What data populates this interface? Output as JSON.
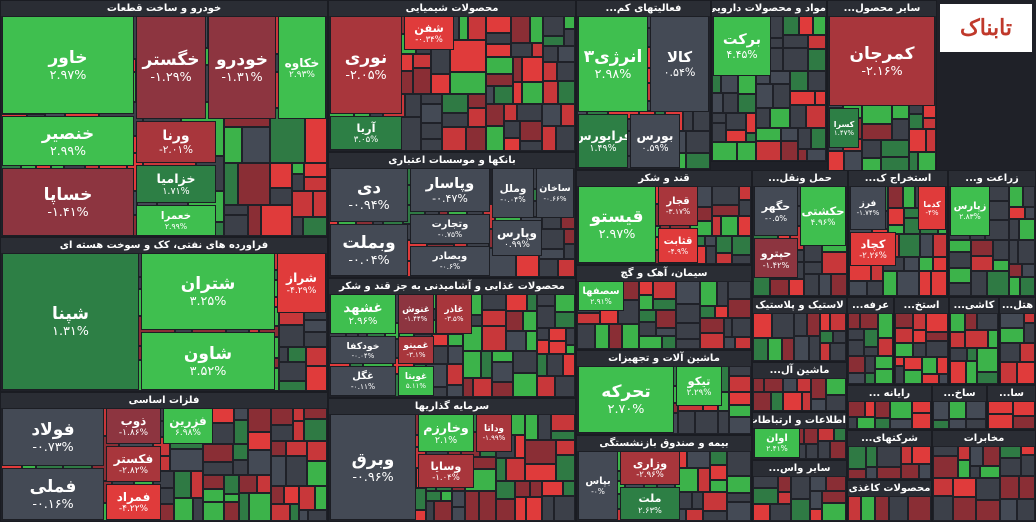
{
  "watermark": "تابناک",
  "sectors": [
    {
      "title": "خودرو و ساخت قطعات",
      "tiles": [
        {
          "name": "خاور",
          "change": "۲.۹۷%",
          "color": "#3fbf4f"
        },
        {
          "name": "خنصیر",
          "change": "۲.۹۹%",
          "color": "#3fbf4f"
        },
        {
          "name": "خساپا",
          "change": "-۱.۴۱%",
          "color": "#8d3540"
        },
        {
          "name": "خگستر",
          "change": "-۱.۲۹%",
          "color": "#8d3540"
        },
        {
          "name": "خودرو",
          "change": "-۱.۳۱%",
          "color": "#8d3540"
        },
        {
          "name": "خکاوه",
          "change": "۲.۹۳%",
          "color": "#3fbf4f"
        },
        {
          "name": "ورنا",
          "change": "-۲.۰۱%",
          "color": "#a8363c"
        },
        {
          "name": "خزامیا",
          "change": "۱.۷۱%",
          "color": "#2d7f45"
        },
        {
          "name": "خعمرا",
          "change": "۲.۹۹%",
          "color": "#3fbf4f"
        }
      ]
    },
    {
      "title": "فراورده های نفتی، کک و سوخت هسته ای",
      "tiles": [
        {
          "name": "شپنا",
          "change": "۱.۳۱%",
          "color": "#2d7f45"
        },
        {
          "name": "شتران",
          "change": "۳.۲۵%",
          "color": "#3fbf4f"
        },
        {
          "name": "شاون",
          "change": "۳.۵۲%",
          "color": "#3fbf4f"
        },
        {
          "name": "شراز",
          "change": "-۴.۲۹%",
          "color": "#e03b3b"
        }
      ]
    },
    {
      "title": "فلزات اساسی",
      "tiles": [
        {
          "name": "فولاد",
          "change": "-۰.۷۳%",
          "color": "#444a55"
        },
        {
          "name": "فملی",
          "change": "-۰.۱۶%",
          "color": "#444a55"
        },
        {
          "name": "ذوب",
          "change": "-۱.۸۶%",
          "color": "#8d3540"
        },
        {
          "name": "فزرین",
          "change": "۶.۹۸%",
          "color": "#3fbf4f"
        },
        {
          "name": "فکستر",
          "change": "-۲.۸۲%",
          "color": "#a8363c"
        },
        {
          "name": "فمراد",
          "change": "-۴.۲۲%",
          "color": "#e03b3b"
        }
      ]
    },
    {
      "title": "محصولات شیمیایی",
      "tiles": [
        {
          "name": "نوری",
          "change": "-۲.۰۵%",
          "color": "#a8363c"
        },
        {
          "name": "آریا",
          "change": "۳.۰۵%",
          "color": "#2d7f45"
        },
        {
          "name": "شفن",
          "change": "-۰.۳۴%",
          "color": "#e03b3b"
        }
      ]
    },
    {
      "title": "بانکها و موسسات اعتباری",
      "tiles": [
        {
          "name": "دی",
          "change": "-۰.۹۴%",
          "color": "#444a55"
        },
        {
          "name": "وبملت",
          "change": "-۰.۰۴%",
          "color": "#444a55"
        },
        {
          "name": "وپاسار",
          "change": "-۰.۴۷%",
          "color": "#444a55"
        },
        {
          "name": "وتجارت",
          "change": "-۰.۷۵%",
          "color": "#444a55"
        },
        {
          "name": "وبصادر",
          "change": "-۰.۶%",
          "color": "#444a55"
        },
        {
          "name": "وملل",
          "change": "-۰.۰۴%",
          "color": "#444a55"
        },
        {
          "name": "ساخان",
          "change": "-۰.۶۶%",
          "color": "#444a55"
        },
        {
          "name": "وپارس",
          "change": "۰.۹۹%",
          "color": "#444a55"
        }
      ]
    },
    {
      "title": "محصولات غذایی و آشامیدنی به جز قند و شکر",
      "tiles": [
        {
          "name": "غشهد",
          "change": "۲.۹۶%",
          "color": "#3fbf4f"
        },
        {
          "name": "خودکفا",
          "change": "-۰.۰۴%",
          "color": "#444a55"
        },
        {
          "name": "غگل",
          "change": "-۰.۱۱%",
          "color": "#444a55"
        },
        {
          "name": "غنوش",
          "change": "-۱.۴۴%",
          "color": "#8d3540"
        },
        {
          "name": "غمینو",
          "change": "-۳.۱%",
          "color": "#a8363c"
        },
        {
          "name": "غویتا",
          "change": "۵.۱۱%",
          "color": "#3fbf4f"
        },
        {
          "name": "غاذر",
          "change": "-۳.۵%",
          "color": "#a8363c"
        }
      ]
    },
    {
      "title": "سرمایه گذاریها",
      "tiles": [
        {
          "name": "وبرق",
          "change": "-۰.۹۶%",
          "color": "#444a55"
        },
        {
          "name": "وخارزم",
          "change": "۲.۱%",
          "color": "#3fbf4f"
        },
        {
          "name": "وداتا",
          "change": "-۱.۹۹%",
          "color": "#a8363c"
        },
        {
          "name": "وسایا",
          "change": "-۱.۰۴%",
          "color": "#a8363c"
        }
      ]
    },
    {
      "title": "فعالیتهای کم...",
      "tiles": [
        {
          "name": "انرژی۳",
          "change": "۲.۹۸%",
          "color": "#3fbf4f"
        },
        {
          "name": "کالا",
          "change": "۰.۵۴%",
          "color": "#444a55"
        },
        {
          "name": "فرابورس",
          "change": "۱.۴۹%",
          "color": "#2d7f45"
        },
        {
          "name": "بورس",
          "change": "۰.۵۹%",
          "color": "#444a55"
        }
      ]
    },
    {
      "title": "مواد و محصولات دارویی",
      "tiles": [
        {
          "name": "برکت",
          "change": "۴.۴۵%",
          "color": "#3fbf4f"
        }
      ]
    },
    {
      "title": "سایر محصول...",
      "tiles": [
        {
          "name": "کمرجان",
          "change": "-۲.۱۶%",
          "color": "#a8363c"
        },
        {
          "name": "کسرا",
          "change": "۱.۴۷%",
          "color": "#2d7f45"
        }
      ]
    },
    {
      "title": "قند و شکر",
      "tiles": [
        {
          "name": "قیستو",
          "change": "۲.۹۷%",
          "color": "#3fbf4f"
        },
        {
          "name": "قجار",
          "change": "-۳.۱۷%",
          "color": "#a8363c"
        },
        {
          "name": "قثابت",
          "change": "-۴.۹%",
          "color": "#e03b3b"
        }
      ]
    },
    {
      "title": "سیمان، آهک و گچ",
      "tiles": [
        {
          "name": "سصفها",
          "change": "۲.۹۱%",
          "color": "#3fbf4f"
        }
      ]
    },
    {
      "title": "ماشین آلات و تجهیزات",
      "tiles": [
        {
          "name": "تحرکه",
          "change": "۲.۷۰%",
          "color": "#3fbf4f"
        },
        {
          "name": "تیکو",
          "change": "۲.۲۹%",
          "color": "#3fbf4f"
        }
      ]
    },
    {
      "title": "بیمه و صندوق بازنشستگی",
      "tiles": [
        {
          "name": "وزاری",
          "change": "-۲.۹۶%",
          "color": "#a8363c"
        },
        {
          "name": "ملت",
          "change": "۲.۶۳%",
          "color": "#2d7f45"
        },
        {
          "name": "بپاس",
          "change": "-۰%",
          "color": "#444a55"
        }
      ]
    },
    {
      "title": "حمل ونقل...",
      "tiles": [
        {
          "name": "حکشتی",
          "change": "۴.۹۶%",
          "color": "#3fbf4f"
        },
        {
          "name": "حگهر",
          "change": "-۰.۵%",
          "color": "#444a55"
        },
        {
          "name": "حپترو",
          "change": "-۱.۴۲%",
          "color": "#8d3540"
        }
      ]
    },
    {
      "title": "استخراج ک...",
      "tiles": [
        {
          "name": "فرز",
          "change": "-۱.۷۴%",
          "color": "#444a55"
        },
        {
          "name": "کدما",
          "change": "-۴%",
          "color": "#e03b3b"
        },
        {
          "name": "کچاد",
          "change": "-۲.۲۶%",
          "color": "#e03b3b"
        }
      ]
    },
    {
      "title": "زراعت و...",
      "tiles": [
        {
          "name": "زپارس",
          "change": "۲.۸۳%",
          "color": "#3fbf4f"
        }
      ]
    },
    {
      "title": "لاستیک و پلاستیک",
      "tiles": []
    },
    {
      "title": "ماشین آل...",
      "tiles": []
    },
    {
      "title": "اطلاعات و ارتباطات",
      "tiles": [
        {
          "name": "اوان",
          "change": "۲.۴۱%",
          "color": "#3fbf4f"
        }
      ]
    },
    {
      "title": "سایر واس...",
      "tiles": []
    },
    {
      "title": "عرفه...",
      "tiles": []
    },
    {
      "title": "استخ...",
      "tiles": []
    },
    {
      "title": "کاشی...",
      "tiles": []
    },
    {
      "title": "هتل...",
      "tiles": []
    },
    {
      "title": "رایانه ...",
      "tiles": []
    },
    {
      "title": "ساخ...",
      "tiles": []
    },
    {
      "title": "سا...",
      "tiles": []
    },
    {
      "title": "شرکتهای...",
      "tiles": []
    },
    {
      "title": "مخابرات",
      "tiles": []
    },
    {
      "title": "محصولات کاغذی",
      "tiles": []
    }
  ]
}
